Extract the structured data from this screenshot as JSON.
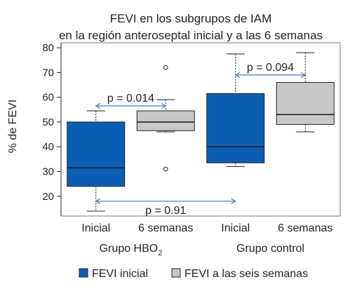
{
  "chart_data": {
    "type": "boxplot",
    "title": [
      "FEVI en los subgrupos de IAM",
      "en la región anteroseptal inicial y a las 6 semanas"
    ],
    "ylabel": "% de FEVI",
    "ylim": [
      12,
      82
    ],
    "yticks": [
      20,
      30,
      40,
      50,
      60,
      70,
      80
    ],
    "grid": false,
    "legend_position": "bottom",
    "categories": [
      "Inicial",
      "6 semanas",
      "Inicial",
      "6 semanas"
    ],
    "groups": [
      {
        "label": "Grupo HBO",
        "subscript": "2"
      },
      {
        "label": "Grupo control",
        "subscript": ""
      }
    ],
    "series": [
      {
        "name": "FEVI inicial",
        "color": "#0a5fb4"
      },
      {
        "name": "FEVI a las seis semanas",
        "color": "#c8c8c8"
      }
    ],
    "boxes": [
      {
        "group": 0,
        "category": "Inicial",
        "series": 0,
        "whisker_low": 14,
        "q1": 24,
        "median": 31.5,
        "q3": 50,
        "whisker_high": 54.5,
        "outliers": []
      },
      {
        "group": 0,
        "category": "6 semanas",
        "series": 1,
        "whisker_low": 46,
        "q1": 46.5,
        "median": 50,
        "q3": 54.5,
        "whisker_high": 59,
        "outliers": [
          72,
          31
        ]
      },
      {
        "group": 1,
        "category": "Inicial",
        "series": 0,
        "whisker_low": 32,
        "q1": 33.5,
        "median": 40,
        "q3": 61.5,
        "whisker_high": 77.5,
        "outliers": []
      },
      {
        "group": 1,
        "category": "6 semanas",
        "series": 1,
        "whisker_low": 46,
        "q1": 49,
        "median": 53,
        "q3": 66,
        "whisker_high": 78,
        "outliers": []
      }
    ],
    "annotations": [
      {
        "text": "p = 0.014",
        "from_box": 0,
        "to_box": 1,
        "y": 56.5
      },
      {
        "text": "p = 0.094",
        "from_box": 2,
        "to_box": 3,
        "y": 69
      },
      {
        "text": "p = 0.91",
        "from_box": 0,
        "to_box": 2,
        "y": 18
      }
    ]
  }
}
